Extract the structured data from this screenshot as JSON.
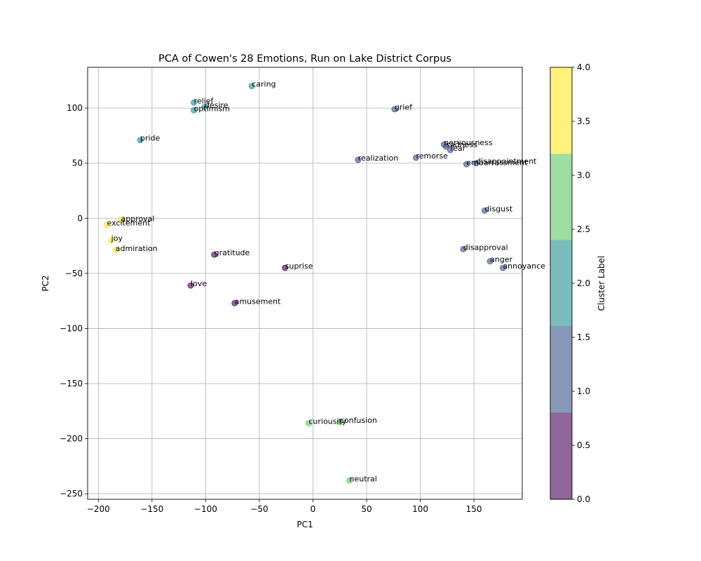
{
  "chart_data": {
    "type": "scatter",
    "title": "PCA of Cowen's 28 Emotions, Run on Lake District Corpus",
    "xlabel": "PC1",
    "ylabel": "PC2",
    "xlim": [
      -210,
      195
    ],
    "ylim": [
      -255,
      137
    ],
    "xticks": [
      -200,
      -150,
      -100,
      -50,
      0,
      50,
      100,
      150
    ],
    "yticks": [
      -250,
      -200,
      -150,
      -100,
      -50,
      0,
      50,
      100
    ],
    "grid": true,
    "colorbar": {
      "label": "Cluster Label",
      "range": [
        0,
        4
      ],
      "ticks": [
        "0.0",
        "0.5",
        "1.0",
        "1.5",
        "2.0",
        "2.5",
        "3.0",
        "3.5",
        "4.0"
      ],
      "bands": [
        "#440154",
        "#3b528b",
        "#21908d",
        "#5dc963",
        "#fde725"
      ]
    },
    "points": [
      {
        "label": "relief",
        "x": -111,
        "y": 105,
        "cluster": 2
      },
      {
        "label": "desire",
        "x": -101,
        "y": 101,
        "cluster": 2
      },
      {
        "label": "optimism",
        "x": -111,
        "y": 98,
        "cluster": 2
      },
      {
        "label": "caring",
        "x": -57,
        "y": 120,
        "cluster": 2
      },
      {
        "label": "pride",
        "x": -161,
        "y": 71,
        "cluster": 2
      },
      {
        "label": "grief",
        "x": 76,
        "y": 99,
        "cluster": 1
      },
      {
        "label": "nervousness",
        "x": 122,
        "y": 67,
        "cluster": 1
      },
      {
        "label": "sadness",
        "x": 124,
        "y": 65,
        "cluster": 1
      },
      {
        "label": "fear",
        "x": 128,
        "y": 62,
        "cluster": 1
      },
      {
        "label": "realization",
        "x": 42,
        "y": 53,
        "cluster": 1
      },
      {
        "label": "remorse",
        "x": 96,
        "y": 55,
        "cluster": 1
      },
      {
        "label": "embarrassment",
        "x": 143,
        "y": 49,
        "cluster": 1
      },
      {
        "label": "disappointment",
        "x": 152,
        "y": 50,
        "cluster": 1
      },
      {
        "label": "disgust",
        "x": 160,
        "y": 7,
        "cluster": 1
      },
      {
        "label": "disapproval",
        "x": 140,
        "y": -28,
        "cluster": 1
      },
      {
        "label": "anger",
        "x": 165,
        "y": -39,
        "cluster": 1
      },
      {
        "label": "annoyance",
        "x": 177,
        "y": -45,
        "cluster": 1
      },
      {
        "label": "approval",
        "x": -179,
        "y": -2,
        "cluster": 4
      },
      {
        "label": "excitement",
        "x": -192,
        "y": -6,
        "cluster": 4
      },
      {
        "label": "joy",
        "x": -188,
        "y": -20,
        "cluster": 4
      },
      {
        "label": "admiration",
        "x": -184,
        "y": -29,
        "cluster": 4
      },
      {
        "label": "gratitude",
        "x": -92,
        "y": -33,
        "cluster": 0
      },
      {
        "label": "suprise",
        "x": -26,
        "y": -45,
        "cluster": 0
      },
      {
        "label": "love",
        "x": -114,
        "y": -61,
        "cluster": 0
      },
      {
        "label": "amusement",
        "x": -73,
        "y": -77,
        "cluster": 0
      },
      {
        "label": "curiousity",
        "x": -4,
        "y": -186,
        "cluster": 3
      },
      {
        "label": "confusion",
        "x": 25,
        "y": -185,
        "cluster": 3
      },
      {
        "label": "neutral",
        "x": 34,
        "y": -238,
        "cluster": 3
      }
    ]
  }
}
